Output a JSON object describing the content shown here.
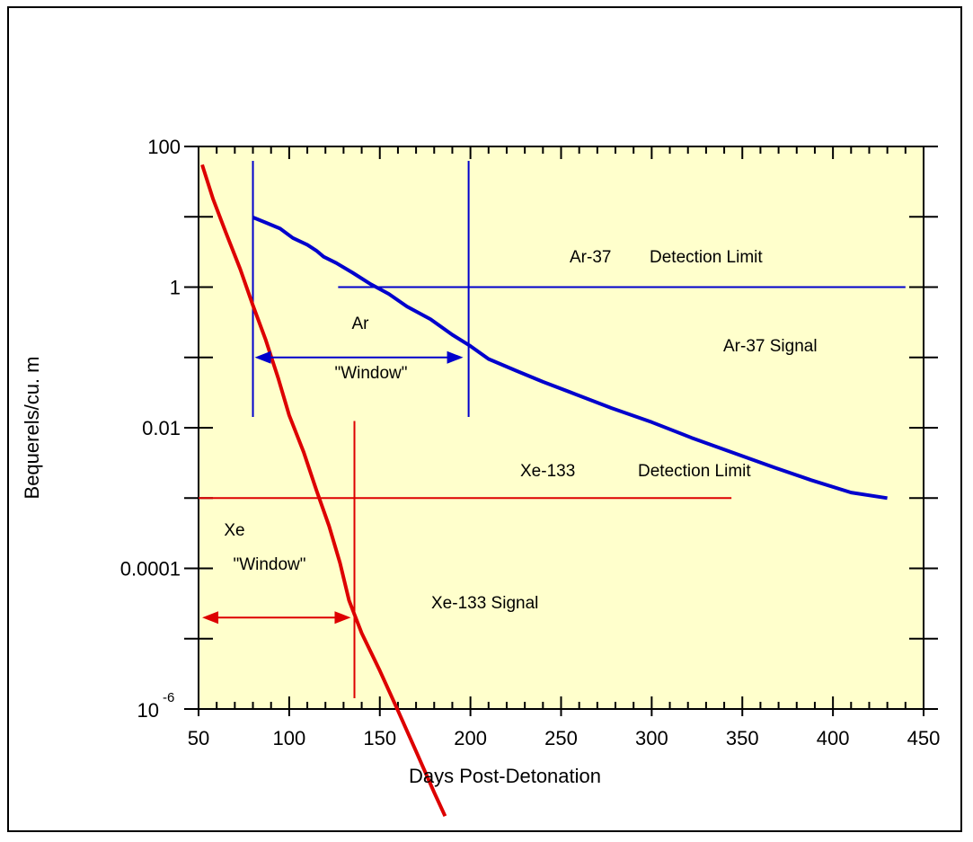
{
  "chart_data": {
    "type": "line",
    "xlabel": "Days Post-Detonation",
    "ylabel": "Bequerels/cu. m",
    "xlim": [
      50,
      450
    ],
    "ylim_log10": [
      -6,
      2
    ],
    "y_scale": "log",
    "grid": false,
    "x_ticks": [
      {
        "value": 50,
        "label": "50"
      },
      {
        "value": 100,
        "label": "100"
      },
      {
        "value": 150,
        "label": "150"
      },
      {
        "value": 200,
        "label": "200"
      },
      {
        "value": 250,
        "label": "250"
      },
      {
        "value": 300,
        "label": "300"
      },
      {
        "value": 350,
        "label": "350"
      },
      {
        "value": 400,
        "label": "400"
      },
      {
        "value": 450,
        "label": "450"
      }
    ],
    "y_ticks": [
      {
        "exp": 2,
        "label": "100"
      },
      {
        "exp": 0,
        "label": "1"
      },
      {
        "exp": -2,
        "label": "0.01"
      },
      {
        "exp": -4,
        "label": "0.0001"
      },
      {
        "exp": -6,
        "label": "10",
        "superscript": "-6"
      }
    ],
    "series": [
      {
        "name": "Ar-37 Signal",
        "color": "#0000cc",
        "points": [
          [
            80,
            9.8
          ],
          [
            87,
            8.3
          ],
          [
            95,
            6.8
          ],
          [
            102,
            5.0
          ],
          [
            110,
            4.0
          ],
          [
            115,
            3.3
          ],
          [
            119,
            2.7
          ],
          [
            126,
            2.2
          ],
          [
            135,
            1.6
          ],
          [
            145,
            1.1
          ],
          [
            155,
            0.8
          ],
          [
            165,
            0.53
          ],
          [
            178,
            0.35
          ],
          [
            190,
            0.21
          ],
          [
            200,
            0.145
          ],
          [
            210,
            0.095
          ],
          [
            225,
            0.065
          ],
          [
            240,
            0.045
          ],
          [
            258,
            0.03
          ],
          [
            278,
            0.019
          ],
          [
            300,
            0.012
          ],
          [
            322,
            0.0072
          ],
          [
            345,
            0.0044
          ],
          [
            368,
            0.0027
          ],
          [
            388,
            0.0018
          ],
          [
            410,
            0.0012
          ],
          [
            430,
            0.001
          ]
        ]
      },
      {
        "name": "Xe-133 Signal",
        "color": "#dd0000",
        "points": [
          [
            52,
            55
          ],
          [
            58,
            18
          ],
          [
            65,
            6
          ],
          [
            73,
            1.8
          ],
          [
            80,
            0.55
          ],
          [
            87,
            0.18
          ],
          [
            94,
            0.05
          ],
          [
            100,
            0.015
          ],
          [
            108,
            0.0045
          ],
          [
            115,
            0.0013
          ],
          [
            122,
            0.0004
          ],
          [
            128,
            0.00012
          ],
          [
            133,
            3.5e-05
          ],
          [
            140,
            1.2e-05
          ],
          [
            150,
            3.5e-06
          ],
          [
            160,
            9.5e-07
          ],
          [
            170,
            2.5e-07
          ],
          [
            180,
            6.5e-08
          ],
          [
            186,
            3e-08
          ]
        ]
      }
    ],
    "reference_lines": [
      {
        "label": "Ar-37 Detection Limit",
        "label_parts": [
          "Ar-37",
          "Detection Limit"
        ],
        "color": "#0000cc",
        "y": 1,
        "x_range": [
          127,
          440
        ]
      },
      {
        "label": "Xe-133 Detection Limit",
        "label_parts": [
          "Xe-133",
          "Detection Limit"
        ],
        "color": "#dd0000",
        "y": 0.001,
        "x_range": [
          50,
          344
        ]
      }
    ],
    "vertical_markers": [
      {
        "color": "#0000cc",
        "x": 80,
        "y_range": [
          100,
          0.01
        ]
      },
      {
        "color": "#0000cc",
        "x": 199,
        "y_range": [
          100,
          0.01
        ]
      },
      {
        "color": "#dd0000",
        "x": 136,
        "y_range": [
          0.02,
          1e-06
        ]
      }
    ],
    "windows": [
      {
        "name": "Ar",
        "text": "\"Window\"",
        "color": "#0000cc",
        "x_range": [
          81,
          196
        ],
        "y": 0.1
      },
      {
        "name": "Xe",
        "text": "\"Window\"",
        "color": "#dd0000",
        "x_range": [
          52,
          134
        ],
        "y": 2e-05
      }
    ],
    "annotations": [
      {
        "text": "Ar-37 Signal",
        "x": 315,
        "y": 0.1
      },
      {
        "text": "Xe-133 Signal",
        "x": 180,
        "y": 1.7e-05
      }
    ],
    "plot_background": "#ffffcc"
  }
}
